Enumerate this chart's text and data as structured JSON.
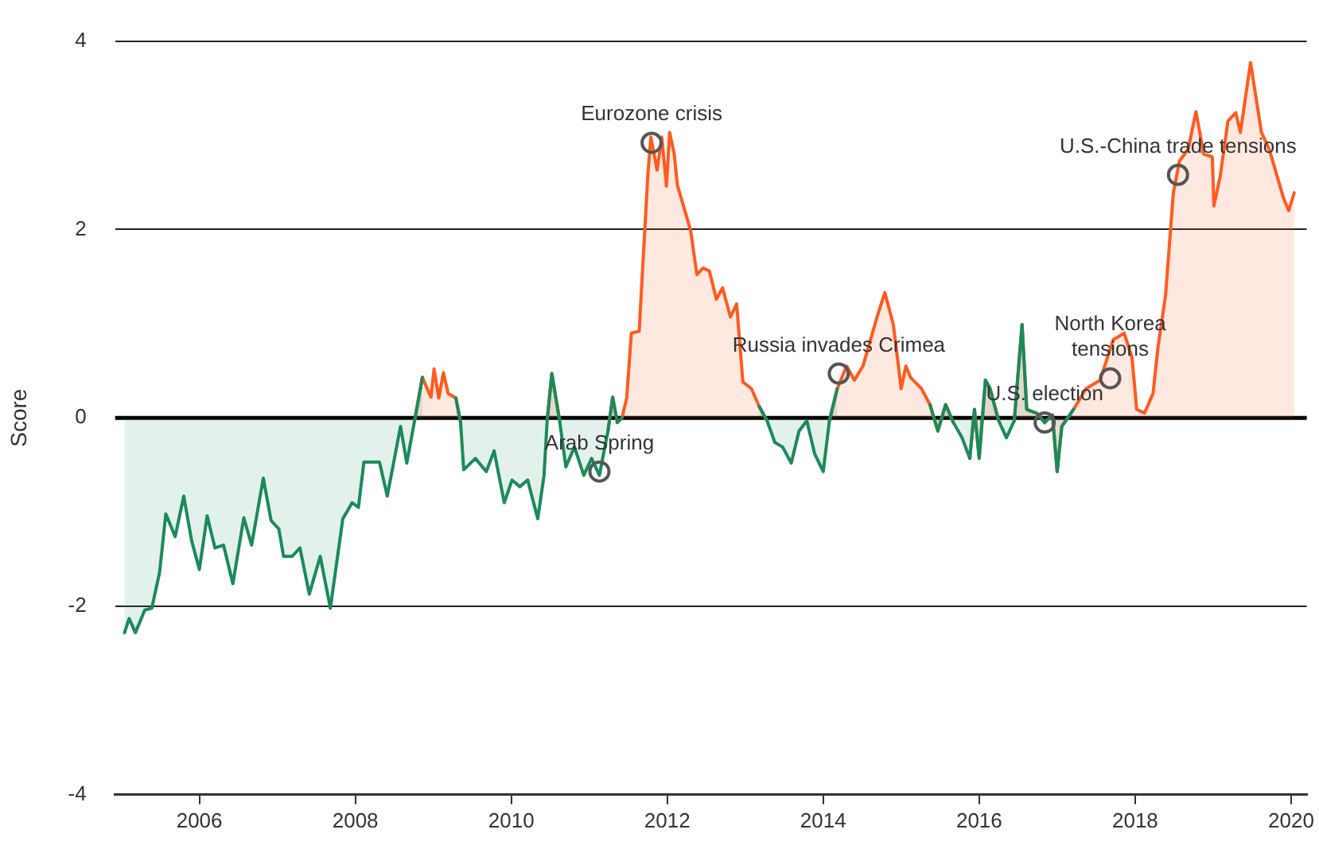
{
  "chart_data": {
    "type": "area",
    "ylabel": "Score",
    "xlim": [
      2004.92,
      2020.2
    ],
    "xticks": [
      2006,
      2008,
      2010,
      2012,
      2014,
      2016,
      2018,
      2020
    ],
    "ylim": [
      -4,
      4
    ],
    "yticks": [
      -4,
      -2,
      0,
      2,
      4
    ],
    "grid": "y",
    "legend": false,
    "marker": "none",
    "ref_lines": [
      {
        "axis": "y",
        "value": 0,
        "color": "#000000"
      }
    ],
    "annotations": [
      {
        "text": "Arab Spring",
        "x": 2011.13,
        "y": -0.57
      },
      {
        "text": "Eurozone crisis",
        "x": 2011.8,
        "y": 2.92
      },
      {
        "text": "Russia invades Crimea",
        "x": 2014.2,
        "y": 0.47
      },
      {
        "text": "U.S. election",
        "x": 2016.84,
        "y": -0.05
      },
      {
        "text": "North Korea\ntensions",
        "x": 2017.68,
        "y": 0.42
      },
      {
        "text": "U.S.-China trade tensions",
        "x": 2018.55,
        "y": 2.58
      }
    ],
    "x": [
      2005.04,
      2005.1,
      2005.18,
      2005.3,
      2005.39,
      2005.49,
      2005.57,
      2005.69,
      2005.8,
      2005.9,
      2006.0,
      2006.1,
      2006.2,
      2006.31,
      2006.43,
      2006.57,
      2006.67,
      2006.82,
      2006.92,
      2007.02,
      2007.08,
      2007.19,
      2007.29,
      2007.41,
      2007.55,
      2007.68,
      2007.84,
      2007.96,
      2008.04,
      2008.11,
      2008.31,
      2008.41,
      2008.58,
      2008.66,
      2008.76,
      2008.86,
      2008.97,
      2009.01,
      2009.07,
      2009.13,
      2009.19,
      2009.29,
      2009.35,
      2009.39,
      2009.54,
      2009.68,
      2009.78,
      2009.91,
      2010.01,
      2010.11,
      2010.21,
      2010.34,
      2010.42,
      2010.46,
      2010.52,
      2010.62,
      2010.7,
      2010.81,
      2010.93,
      2011.03,
      2011.13,
      2011.24,
      2011.3,
      2011.36,
      2011.42,
      2011.48,
      2011.54,
      2011.64,
      2011.75,
      2011.79,
      2011.87,
      2011.93,
      2011.99,
      2012.03,
      2012.09,
      2012.13,
      2012.3,
      2012.38,
      2012.46,
      2012.54,
      2012.63,
      2012.71,
      2012.81,
      2012.89,
      2012.97,
      2013.08,
      2013.18,
      2013.28,
      2013.38,
      2013.48,
      2013.59,
      2013.69,
      2013.79,
      2013.89,
      2014.0,
      2014.08,
      2014.18,
      2014.3,
      2014.4,
      2014.51,
      2014.69,
      2014.79,
      2014.9,
      2015.0,
      2015.06,
      2015.12,
      2015.26,
      2015.37,
      2015.47,
      2015.57,
      2015.67,
      2015.78,
      2015.88,
      2015.94,
      2016.0,
      2016.08,
      2016.14,
      2016.25,
      2016.35,
      2016.45,
      2016.55,
      2016.61,
      2016.74,
      2016.84,
      2016.94,
      2017.0,
      2017.06,
      2017.21,
      2017.37,
      2017.55,
      2017.72,
      2017.86,
      2017.96,
      2018.02,
      2018.12,
      2018.23,
      2018.29,
      2018.39,
      2018.49,
      2018.57,
      2018.68,
      2018.78,
      2018.88,
      2018.99,
      2019.01,
      2019.09,
      2019.19,
      2019.29,
      2019.35,
      2019.48,
      2019.62,
      2019.72,
      2019.9,
      2019.97,
      2020.04
    ],
    "series": [
      {
        "color": "#1a8a5a",
        "values": [
          -2.28,
          -2.13,
          -2.28,
          -2.04,
          -2.02,
          -1.64,
          -1.02,
          -1.26,
          -0.83,
          -1.3,
          -1.61,
          -1.04,
          -1.38,
          -1.35,
          -1.76,
          -1.06,
          -1.35,
          -0.64,
          -1.09,
          -1.18,
          -1.47,
          -1.47,
          -1.38,
          -1.87,
          -1.47,
          -2.02,
          -1.07,
          -0.9,
          -0.95,
          -0.47,
          -0.47,
          -0.83,
          -0.09,
          -0.48,
          -0.03,
          0.43,
          null,
          null,
          null,
          null,
          null,
          0.21,
          -0.05,
          -0.55,
          -0.43,
          -0.57,
          -0.35,
          -0.9,
          -0.66,
          -0.73,
          -0.66,
          -1.07,
          -0.61,
          -0.03,
          0.47,
          -0.03,
          -0.52,
          -0.31,
          -0.61,
          -0.43,
          -0.61,
          -0.14,
          0.22,
          -0.05,
          0.0,
          null,
          null,
          null,
          null,
          null,
          null,
          null,
          null,
          null,
          null,
          null,
          null,
          null,
          null,
          null,
          null,
          null,
          null,
          null,
          null,
          null,
          0.12,
          -0.03,
          -0.26,
          -0.31,
          -0.48,
          -0.14,
          -0.03,
          -0.38,
          -0.57,
          -0.03,
          0.31,
          null,
          null,
          null,
          null,
          null,
          null,
          null,
          null,
          null,
          null,
          0.14,
          -0.14,
          0.14,
          -0.05,
          -0.21,
          -0.43,
          0.09,
          -0.43,
          0.4,
          0.31,
          -0.03,
          -0.21,
          -0.03,
          0.99,
          0.09,
          0.05,
          -0.05,
          0.03,
          -0.57,
          -0.09,
          0.09,
          null,
          null,
          null,
          null,
          null,
          null,
          null,
          null,
          null,
          null,
          null,
          null,
          null,
          null,
          null,
          null,
          null,
          null,
          null,
          null,
          null,
          null,
          null,
          null,
          null,
          null,
          null
        ]
      },
      {
        "color": "#ff5a1f",
        "values": [
          null,
          null,
          null,
          null,
          null,
          null,
          null,
          null,
          null,
          null,
          null,
          null,
          null,
          null,
          null,
          null,
          null,
          null,
          null,
          null,
          null,
          null,
          null,
          null,
          null,
          null,
          null,
          null,
          null,
          null,
          null,
          null,
          null,
          null,
          -0.03,
          0.43,
          0.22,
          0.52,
          0.21,
          0.48,
          0.26,
          0.21,
          -0.05,
          null,
          null,
          null,
          null,
          null,
          null,
          null,
          null,
          null,
          null,
          -0.03,
          0.47,
          -0.03,
          null,
          null,
          null,
          null,
          null,
          -0.14,
          0.22,
          -0.05,
          0.0,
          0.21,
          0.9,
          0.92,
          2.56,
          2.98,
          2.63,
          2.98,
          2.46,
          3.03,
          2.8,
          2.47,
          1.99,
          1.52,
          1.59,
          1.56,
          1.26,
          1.38,
          1.07,
          1.21,
          0.38,
          0.31,
          0.12,
          -0.03,
          null,
          null,
          null,
          null,
          null,
          null,
          null,
          -0.03,
          0.31,
          0.55,
          0.4,
          0.55,
          1.07,
          1.33,
          0.99,
          0.31,
          0.55,
          0.43,
          0.31,
          0.14,
          -0.14,
          0.14,
          -0.05,
          null,
          -0.43,
          0.09,
          -0.43,
          0.4,
          0.31,
          -0.03,
          null,
          -0.03,
          0.99,
          0.09,
          0.05,
          -0.05,
          0.03,
          -0.57,
          -0.09,
          0.09,
          0.31,
          0.4,
          0.83,
          0.9,
          0.64,
          0.09,
          0.05,
          0.26,
          0.73,
          1.3,
          2.39,
          2.73,
          2.85,
          3.25,
          2.8,
          2.77,
          2.25,
          2.56,
          3.15,
          3.24,
          3.03,
          3.77,
          3.03,
          2.85,
          2.34,
          2.2,
          2.39
        ]
      }
    ]
  }
}
